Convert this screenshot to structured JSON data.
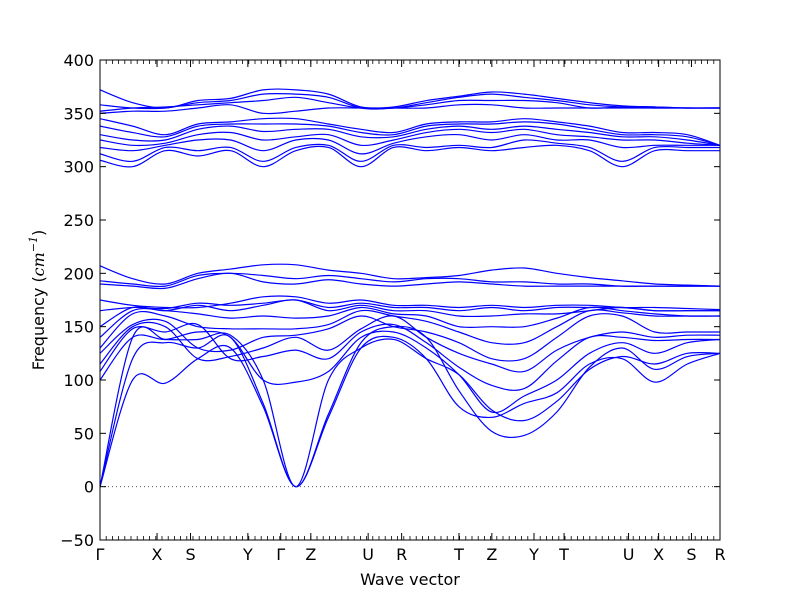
{
  "chart_data": {
    "type": "line",
    "xlabel": "Wave vector",
    "ylabel_text": "Frequency (",
    "ylabel_unit": "cm",
    "ylabel_exp": "−1",
    "ylabel_close": ")",
    "ylim": [
      -50,
      400
    ],
    "yticks": [
      -50,
      0,
      50,
      100,
      150,
      200,
      250,
      300,
      350,
      400
    ],
    "xlim": [
      0,
      20
    ],
    "kpoints": [
      {
        "label": "Γ",
        "x": 0
      },
      {
        "label": "X",
        "x": 1.84
      },
      {
        "label": "S",
        "x": 2.92
      },
      {
        "label": "Y",
        "x": 4.77
      },
      {
        "label": "Γ",
        "x": 5.83
      },
      {
        "label": "Z",
        "x": 6.8
      },
      {
        "label": "U",
        "x": 8.65
      },
      {
        "label": "R",
        "x": 9.73
      },
      {
        "label": "T",
        "x": 11.58
      },
      {
        "label": "Z",
        "x": 12.64
      },
      {
        "label": "Y",
        "x": 14.0
      },
      {
        "label": "T",
        "x": 14.97
      },
      {
        "label": "U",
        "x": 17.05
      },
      {
        "label": "X",
        "x": 18.02
      },
      {
        "label": "S",
        "x": 19.08
      },
      {
        "label": "R",
        "x": 20.0
      }
    ],
    "zero_line": {
      "y": 0,
      "style": "dotted"
    },
    "grid": false,
    "legend": "none",
    "line_color": "#0000ff",
    "series": [
      {
        "y": [
          0,
          100,
          97,
          120,
          130,
          75,
          0,
          65,
          130,
          140,
          120,
          75,
          65,
          78,
          88,
          115,
          120,
          98,
          115,
          125
        ]
      },
      {
        "y": [
          0,
          120,
          135,
          130,
          140,
          78,
          0,
          68,
          135,
          150,
          140,
          90,
          52,
          48,
          70,
          112,
          130,
          110,
          122,
          125
        ]
      },
      {
        "y": [
          0,
          140,
          138,
          138,
          142,
          100,
          0,
          100,
          130,
          138,
          120,
          105,
          72,
          62,
          80,
          110,
          122,
          115,
          125,
          125
        ]
      },
      {
        "y": [
          100,
          140,
          138,
          145,
          140,
          100,
          98,
          108,
          140,
          145,
          130,
          105,
          70,
          85,
          100,
          125,
          135,
          125,
          135,
          138
        ]
      },
      {
        "y": [
          108,
          148,
          145,
          152,
          120,
          122,
          128,
          120,
          145,
          152,
          135,
          112,
          95,
          92,
          118,
          140,
          140,
          137,
          138,
          138
        ]
      },
      {
        "y": [
          115,
          150,
          150,
          120,
          122,
          130,
          140,
          128,
          148,
          160,
          140,
          125,
          115,
          108,
          128,
          140,
          145,
          140,
          142,
          142
        ]
      },
      {
        "y": [
          125,
          152,
          155,
          130,
          128,
          140,
          142,
          148,
          160,
          150,
          145,
          135,
          120,
          120,
          140,
          160,
          160,
          145,
          145,
          145
        ]
      },
      {
        "y": [
          130,
          162,
          160,
          150,
          148,
          148,
          148,
          152,
          165,
          160,
          155,
          145,
          135,
          135,
          150,
          165,
          163,
          160,
          160,
          160
        ]
      },
      {
        "y": [
          140,
          165,
          165,
          162,
          158,
          160,
          158,
          160,
          168,
          162,
          160,
          150,
          150,
          150,
          158,
          168,
          165,
          162,
          160,
          160
        ]
      },
      {
        "y": [
          150,
          168,
          165,
          170,
          165,
          170,
          175,
          165,
          170,
          165,
          165,
          160,
          160,
          162,
          162,
          165,
          168,
          165,
          165,
          165
        ]
      },
      {
        "y": [
          165,
          168,
          167,
          172,
          170,
          172,
          175,
          168,
          172,
          168,
          168,
          165,
          168,
          165,
          168,
          168,
          168,
          165,
          165,
          165
        ]
      },
      {
        "y": [
          175,
          170,
          168,
          168,
          172,
          178,
          178,
          172,
          175,
          170,
          170,
          168,
          170,
          168,
          170,
          170,
          168,
          168,
          167,
          166
        ]
      },
      {
        "y": [
          190,
          188,
          186,
          195,
          200,
          192,
          190,
          194,
          190,
          188,
          190,
          192,
          190,
          188,
          188,
          188,
          188,
          188,
          188,
          188
        ]
      },
      {
        "y": [
          193,
          190,
          188,
          198,
          200,
          198,
          195,
          198,
          195,
          192,
          195,
          195,
          192,
          192,
          190,
          190,
          188,
          188,
          188,
          188
        ]
      },
      {
        "y": [
          207,
          195,
          190,
          200,
          204,
          208,
          208,
          203,
          200,
          195,
          196,
          198,
          203,
          205,
          200,
          196,
          193,
          190,
          189,
          188
        ]
      },
      {
        "y": [
          306,
          300,
          315,
          310,
          315,
          300,
          315,
          318,
          300,
          318,
          315,
          318,
          315,
          318,
          320,
          315,
          300,
          315,
          315,
          315
        ]
      },
      {
        "y": [
          312,
          305,
          318,
          315,
          318,
          305,
          318,
          320,
          305,
          320,
          318,
          320,
          318,
          325,
          322,
          318,
          305,
          318,
          318,
          318
        ]
      },
      {
        "y": [
          318,
          315,
          320,
          325,
          325,
          315,
          325,
          325,
          312,
          322,
          328,
          330,
          325,
          330,
          325,
          325,
          318,
          320,
          320,
          320
        ]
      },
      {
        "y": [
          325,
          320,
          322,
          330,
          332,
          325,
          328,
          330,
          320,
          325,
          332,
          335,
          332,
          335,
          330,
          328,
          325,
          325,
          322,
          320
        ]
      },
      {
        "y": [
          330,
          325,
          325,
          335,
          338,
          333,
          335,
          335,
          328,
          328,
          335,
          338,
          335,
          338,
          335,
          332,
          328,
          328,
          325,
          320
        ]
      },
      {
        "y": [
          338,
          332,
          328,
          338,
          340,
          340,
          340,
          338,
          332,
          330,
          338,
          340,
          340,
          342,
          340,
          335,
          330,
          330,
          328,
          320
        ]
      },
      {
        "y": [
          345,
          338,
          330,
          340,
          342,
          345,
          345,
          340,
          335,
          332,
          340,
          342,
          342,
          345,
          342,
          338,
          332,
          332,
          330,
          320
        ]
      },
      {
        "y": [
          350,
          352,
          352,
          355,
          358,
          350,
          352,
          355,
          355,
          355,
          355,
          358,
          358,
          355,
          355,
          355,
          355,
          355,
          355,
          355
        ]
      },
      {
        "y": [
          352,
          355,
          356,
          358,
          360,
          362,
          365,
          360,
          355,
          355,
          358,
          362,
          362,
          362,
          360,
          355,
          356,
          356,
          355,
          355
        ]
      },
      {
        "y": [
          358,
          355,
          355,
          360,
          362,
          368,
          368,
          365,
          355,
          355,
          360,
          365,
          368,
          365,
          362,
          358,
          356,
          355,
          355,
          355
        ]
      },
      {
        "y": [
          372,
          360,
          355,
          362,
          364,
          372,
          372,
          368,
          356,
          356,
          362,
          366,
          370,
          368,
          364,
          360,
          357,
          356,
          355,
          355
        ]
      }
    ]
  }
}
